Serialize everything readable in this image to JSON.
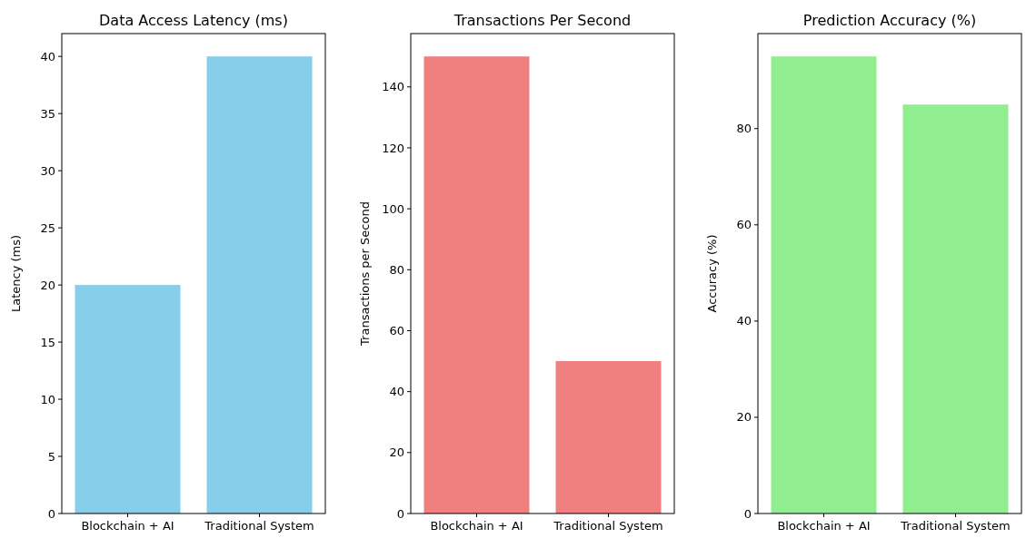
{
  "chart_data": [
    {
      "type": "bar",
      "title": "Data Access Latency (ms)",
      "ylabel": "Latency (ms)",
      "categories": [
        "Blockchain + AI",
        "Traditional System"
      ],
      "values": [
        20,
        40
      ],
      "color": "#87ceeb",
      "ylim": [
        0,
        42
      ],
      "yticks": [
        0,
        5,
        10,
        15,
        20,
        25,
        30,
        35,
        40
      ]
    },
    {
      "type": "bar",
      "title": "Transactions Per Second",
      "ylabel": "Transactions per Second",
      "categories": [
        "Blockchain + AI",
        "Traditional System"
      ],
      "values": [
        150,
        50
      ],
      "color": "#f08080",
      "ylim": [
        0,
        157.5
      ],
      "yticks": [
        0,
        20,
        40,
        60,
        80,
        100,
        120,
        140
      ]
    },
    {
      "type": "bar",
      "title": "Prediction Accuracy (%)",
      "ylabel": "Accuracy (%)",
      "categories": [
        "Blockchain + AI",
        "Traditional System"
      ],
      "values": [
        95,
        85
      ],
      "color": "#90ee90",
      "ylim": [
        0,
        99.75
      ],
      "yticks": [
        0,
        20,
        40,
        60,
        80
      ]
    }
  ]
}
